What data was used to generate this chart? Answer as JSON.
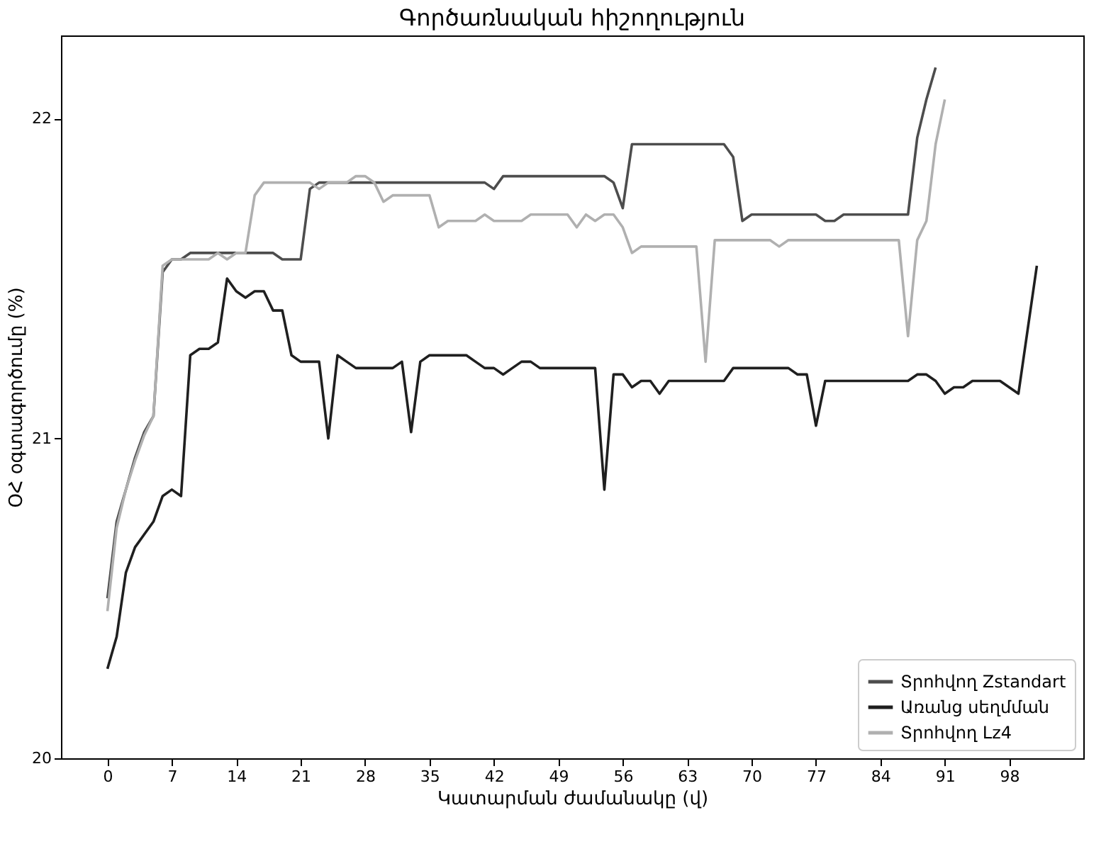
{
  "chart_data": {
    "type": "line",
    "title": "Գործառնական հիշողություն",
    "xlabel": "Կատարման ժամանակը (վ)",
    "ylabel": "ՕՀ օգտագործումը (%)",
    "xlim": [
      -5.05,
      106.05
    ],
    "xticks": [
      0,
      7,
      14,
      21,
      28,
      35,
      42,
      49,
      56,
      63,
      70,
      77,
      84,
      91,
      98
    ],
    "ylim": [
      20,
      22.26
    ],
    "yticks": [
      20,
      21,
      22
    ],
    "grid": false,
    "legend": "bottom right",
    "line_style": "solid",
    "marker": "none",
    "series": [
      {
        "name": "Տրոհվող Zstandart",
        "color": "#4d4d4d",
        "x": [
          0,
          1,
          2,
          3,
          4,
          5,
          6,
          7,
          8,
          9,
          18,
          19,
          21,
          22,
          23,
          41,
          42,
          43,
          54,
          55,
          56,
          57,
          67,
          68,
          69,
          70,
          77,
          78,
          79,
          80,
          87,
          88,
          89,
          90
        ],
        "values": [
          20.5,
          20.74,
          20.84,
          20.94,
          21.02,
          21.07,
          21.52,
          21.56,
          21.56,
          21.58,
          21.58,
          21.56,
          21.56,
          21.78,
          21.8,
          21.8,
          21.78,
          21.82,
          21.82,
          21.8,
          21.72,
          21.92,
          21.92,
          21.88,
          21.68,
          21.7,
          21.7,
          21.68,
          21.68,
          21.7,
          21.7,
          21.94,
          22.06,
          22.16
        ]
      },
      {
        "name": "Առանց սեղմման",
        "color": "#1f1f1f",
        "x": [
          0,
          1,
          2,
          3,
          4,
          5,
          6,
          7,
          8,
          9,
          10,
          11,
          12,
          13,
          14,
          15,
          16,
          17,
          18,
          19,
          20,
          21,
          23,
          24,
          25,
          26,
          27,
          31,
          32,
          33,
          34,
          35,
          39,
          40,
          41,
          42,
          43,
          44,
          45,
          46,
          47,
          53,
          54,
          55,
          56,
          57,
          58,
          59,
          60,
          61,
          67,
          68,
          73,
          74,
          75,
          76,
          77,
          78,
          87,
          88,
          89,
          90,
          91,
          92,
          93,
          94,
          97,
          98,
          99,
          101
        ],
        "values": [
          20.28,
          20.38,
          20.58,
          20.66,
          20.7,
          20.74,
          20.82,
          20.84,
          20.82,
          21.26,
          21.28,
          21.28,
          21.3,
          21.5,
          21.46,
          21.44,
          21.46,
          21.46,
          21.4,
          21.4,
          21.26,
          21.24,
          21.24,
          21.0,
          21.26,
          21.24,
          21.22,
          21.22,
          21.24,
          21.02,
          21.24,
          21.26,
          21.26,
          21.24,
          21.22,
          21.22,
          21.2,
          21.22,
          21.24,
          21.24,
          21.22,
          21.22,
          20.84,
          21.2,
          21.2,
          21.16,
          21.18,
          21.18,
          21.14,
          21.18,
          21.18,
          21.22,
          21.22,
          21.22,
          21.2,
          21.2,
          21.04,
          21.18,
          21.18,
          21.2,
          21.2,
          21.18,
          21.14,
          21.16,
          21.16,
          21.18,
          21.18,
          21.16,
          21.14,
          21.54
        ]
      },
      {
        "name": "Տրոհվող Lz4",
        "color": "#b0b0b0",
        "x": [
          0,
          1,
          2,
          3,
          4,
          5,
          6,
          7,
          11,
          12,
          13,
          14,
          15,
          16,
          17,
          22,
          23,
          24,
          26,
          27,
          28,
          29,
          30,
          31,
          35,
          36,
          37,
          40,
          41,
          42,
          45,
          46,
          50,
          51,
          52,
          53,
          54,
          55,
          56,
          57,
          58,
          64,
          65,
          66,
          72,
          73,
          74,
          86,
          87,
          88,
          89,
          90,
          91
        ],
        "values": [
          20.46,
          20.72,
          20.84,
          20.93,
          21.01,
          21.07,
          21.54,
          21.56,
          21.56,
          21.58,
          21.56,
          21.58,
          21.58,
          21.76,
          21.8,
          21.8,
          21.78,
          21.8,
          21.8,
          21.82,
          21.82,
          21.8,
          21.74,
          21.76,
          21.76,
          21.66,
          21.68,
          21.68,
          21.7,
          21.68,
          21.68,
          21.7,
          21.7,
          21.66,
          21.7,
          21.68,
          21.7,
          21.7,
          21.66,
          21.58,
          21.6,
          21.6,
          21.24,
          21.62,
          21.62,
          21.6,
          21.62,
          21.62,
          21.32,
          21.62,
          21.68,
          21.92,
          22.06
        ]
      }
    ]
  }
}
